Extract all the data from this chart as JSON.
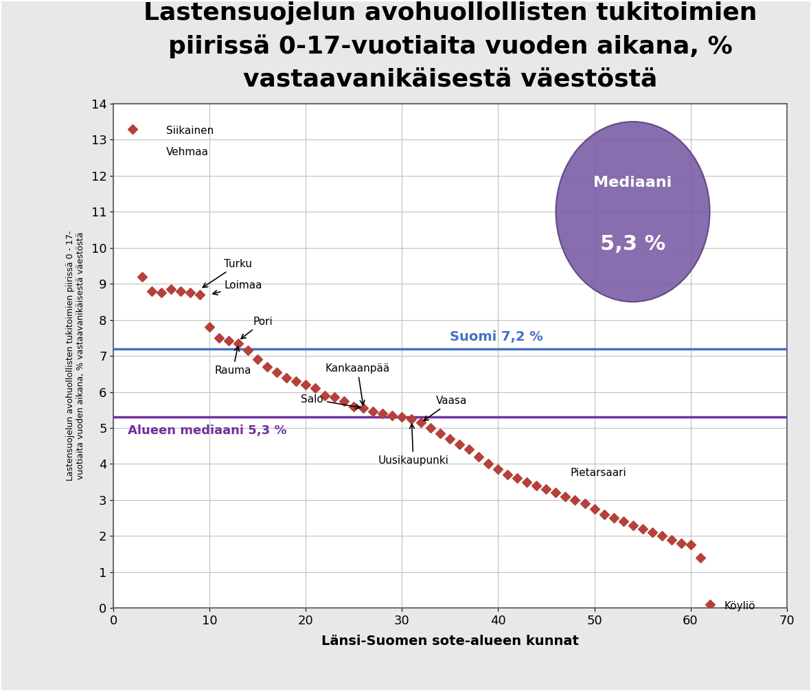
{
  "title": "Lastensuojelun avohuollollisten tukitoimien\npiirissä 0-17-vuotiaita vuoden aikana, %\nvastaavanikäisestä väestöstä",
  "xlabel": "Länsi-Suomen sote-alueen kunnat",
  "ylabel": "Lastensuojelun avohuollollisten tukitoimien piirissä 0 - 17-\nvuotiaita vuoden aikana, % vastaavanikäisestä väestöstä",
  "xlim": [
    0,
    70
  ],
  "ylim": [
    0,
    14
  ],
  "xticks": [
    0,
    10,
    20,
    30,
    40,
    50,
    60,
    70
  ],
  "yticks": [
    0,
    1,
    2,
    3,
    4,
    5,
    6,
    7,
    8,
    9,
    10,
    11,
    12,
    13,
    14
  ],
  "suomi_line": 7.2,
  "suomi_label": "Suomi 7,2 %",
  "median_line": 5.3,
  "median_label": "Alueen mediaani 5,3 %",
  "median_bubble_text1": "Mediaani",
  "median_bubble_text2": "5,3 %",
  "median_bubble_x": 54,
  "median_bubble_y": 11.0,
  "marker_color": "#b5413a",
  "suomi_line_color": "#4472c4",
  "median_line_color": "#7030a0",
  "bubble_color": "#7b5ea7",
  "title_fontsize": 26,
  "axis_label_fontsize": 13,
  "tick_fontsize": 13,
  "annotation_fontsize": 11,
  "xy_data": [
    [
      2,
      13.3
    ],
    [
      3,
      9.2
    ],
    [
      4,
      8.8
    ],
    [
      5,
      8.75
    ],
    [
      6,
      8.85
    ],
    [
      7,
      8.8
    ],
    [
      8,
      8.75
    ],
    [
      9,
      8.7
    ],
    [
      10,
      7.8
    ],
    [
      11,
      7.5
    ],
    [
      12,
      7.42
    ],
    [
      13,
      7.35
    ],
    [
      14,
      7.15
    ],
    [
      15,
      6.9
    ],
    [
      16,
      6.7
    ],
    [
      17,
      6.55
    ],
    [
      18,
      6.4
    ],
    [
      19,
      6.3
    ],
    [
      20,
      6.2
    ],
    [
      21,
      6.1
    ],
    [
      22,
      5.9
    ],
    [
      23,
      5.85
    ],
    [
      24,
      5.75
    ],
    [
      25,
      5.6
    ],
    [
      26,
      5.55
    ],
    [
      27,
      5.45
    ],
    [
      28,
      5.4
    ],
    [
      29,
      5.35
    ],
    [
      30,
      5.3
    ],
    [
      31,
      5.25
    ],
    [
      32,
      5.15
    ],
    [
      33,
      5.0
    ],
    [
      34,
      4.85
    ],
    [
      35,
      4.7
    ],
    [
      36,
      4.55
    ],
    [
      37,
      4.4
    ],
    [
      38,
      4.2
    ],
    [
      39,
      4.0
    ],
    [
      40,
      3.85
    ],
    [
      41,
      3.7
    ],
    [
      42,
      3.6
    ],
    [
      43,
      3.5
    ],
    [
      44,
      3.4
    ],
    [
      45,
      3.3
    ],
    [
      46,
      3.2
    ],
    [
      47,
      3.1
    ],
    [
      48,
      3.0
    ],
    [
      49,
      2.9
    ],
    [
      50,
      2.75
    ],
    [
      51,
      2.6
    ],
    [
      52,
      2.5
    ],
    [
      53,
      2.4
    ],
    [
      54,
      2.3
    ],
    [
      55,
      2.2
    ],
    [
      56,
      2.1
    ],
    [
      57,
      2.0
    ],
    [
      58,
      1.9
    ],
    [
      59,
      1.8
    ],
    [
      60,
      1.75
    ],
    [
      61,
      1.4
    ],
    [
      62,
      0.1
    ]
  ],
  "background_color": "#e8e8e8",
  "plot_bg_color": "#ffffff",
  "grid_color": "#c0c0c0"
}
